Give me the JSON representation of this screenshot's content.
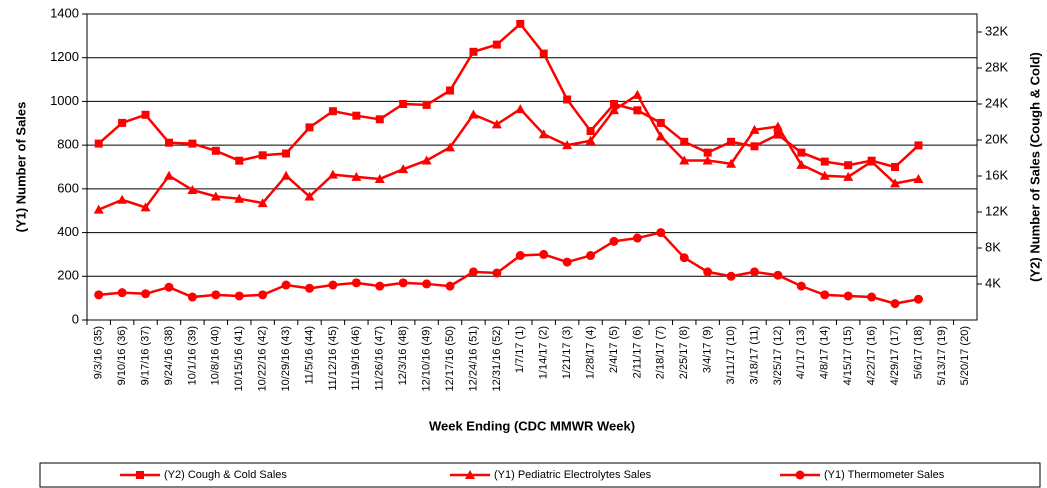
{
  "chart_data": {
    "type": "line",
    "x_label": "Week Ending (CDC MMWR Week)",
    "y_label": "(Y1) Number of Sales",
    "y2_label": "(Y2) Number of Sales (Cough & Cold)",
    "categories": [
      "9/3/16 (35)",
      "9/10/16 (36)",
      "9/17/16 (37)",
      "9/24/16 (38)",
      "10/1/16 (39)",
      "10/8/16 (40)",
      "10/15/16 (41)",
      "10/22/16 (42)",
      "10/29/16 (43)",
      "11/5/16 (44)",
      "11/12/16 (45)",
      "11/19/16 (46)",
      "11/26/16 (47)",
      "12/3/16 (48)",
      "12/10/16 (49)",
      "12/17/16 (50)",
      "12/24/16 (51)",
      "12/31/16 (52)",
      "1/7/17 (1)",
      "1/14/17 (2)",
      "1/21/17 (3)",
      "1/28/17 (4)",
      "2/4/17 (5)",
      "2/11/17 (6)",
      "2/18/17 (7)",
      "2/25/17 (8)",
      "3/4/17 (9)",
      "3/11/17 (10)",
      "3/18/17 (11)",
      "3/25/17 (12)",
      "4/1/17 (13)",
      "4/8/17 (14)",
      "4/15/17 (15)",
      "4/22/17 (16)",
      "4/29/17 (17)",
      "5/6/17 (18)",
      "5/13/17 (19)",
      "5/20/17 (20)"
    ],
    "series": [
      {
        "name": "(Y2) Cough & Cold Sales",
        "color": "#ff0000",
        "marker": "square",
        "axis": "y2",
        "values": [
          19600,
          21900,
          22800,
          19700,
          19600,
          18800,
          17700,
          18300,
          18500,
          21400,
          23200,
          22700,
          22300,
          24000,
          23900,
          25500,
          29800,
          30600,
          32900,
          29600,
          24500,
          21000,
          24000,
          23300,
          21900,
          19800,
          18600,
          19800,
          19300,
          20600,
          18600,
          17600,
          17200,
          17700,
          17000,
          19400,
          null,
          null
        ]
      },
      {
        "name": "(Y1) Pediatric Electrolytes Sales",
        "color": "#ff0000",
        "marker": "triangle",
        "values": [
          505,
          550,
          515,
          660,
          595,
          565,
          555,
          535,
          660,
          565,
          665,
          655,
          645,
          690,
          730,
          790,
          940,
          895,
          965,
          850,
          800,
          820,
          960,
          1030,
          840,
          730,
          730,
          715,
          870,
          885,
          710,
          660,
          655,
          725,
          625,
          645,
          null,
          null
        ]
      },
      {
        "name": "(Y1) Thermometer Sales",
        "color": "#ff0000",
        "marker": "circle",
        "values": [
          115,
          125,
          120,
          150,
          105,
          115,
          110,
          115,
          160,
          145,
          160,
          170,
          155,
          170,
          165,
          155,
          220,
          215,
          295,
          300,
          265,
          295,
          360,
          375,
          400,
          285,
          220,
          200,
          220,
          205,
          155,
          115,
          110,
          105,
          75,
          95,
          null,
          null
        ]
      }
    ],
    "ylim": [
      0,
      1400
    ],
    "yticks": [
      0,
      200,
      400,
      600,
      800,
      1000,
      1200,
      1400
    ],
    "y2lim": [
      0,
      34000
    ],
    "y2ticks": [
      {
        "value": 4000,
        "label": "4K"
      },
      {
        "value": 8000,
        "label": "8K"
      },
      {
        "value": 12000,
        "label": "12K"
      },
      {
        "value": 16000,
        "label": "16K"
      },
      {
        "value": 20000,
        "label": "20K"
      },
      {
        "value": 24000,
        "label": "24K"
      },
      {
        "value": 28000,
        "label": "28K"
      },
      {
        "value": 32000,
        "label": "32K"
      }
    ],
    "grid": true,
    "legend": "bottom"
  }
}
